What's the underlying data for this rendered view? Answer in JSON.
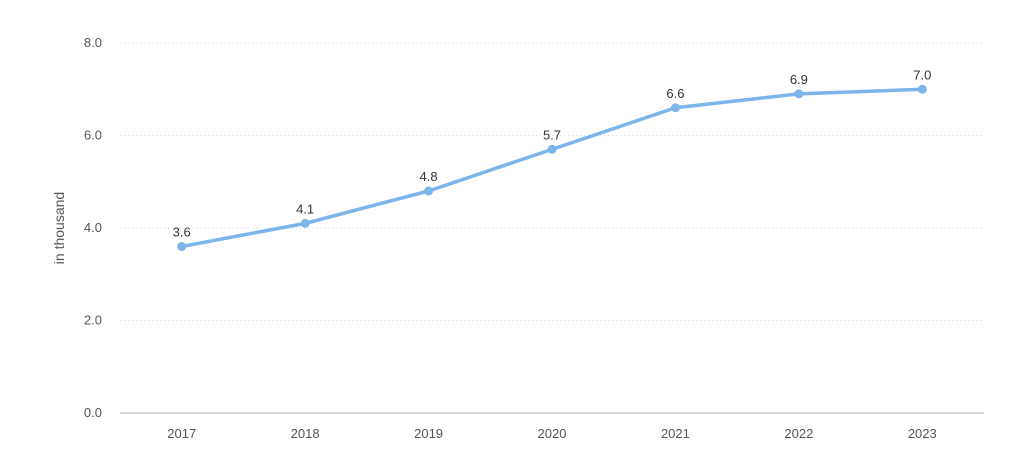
{
  "chart_data": {
    "type": "line",
    "categories": [
      "2017",
      "2018",
      "2019",
      "2020",
      "2021",
      "2022",
      "2023"
    ],
    "series": [
      {
        "values": [
          3.6,
          4.1,
          4.8,
          5.7,
          6.6,
          6.9,
          7.0
        ],
        "data_labels": [
          "3.6",
          "4.1",
          "4.8",
          "5.7",
          "6.6",
          "6.9",
          "7.0"
        ],
        "color": "#7cb5ec"
      }
    ],
    "ylabel": "in thousand",
    "xlabel": "",
    "ylim": [
      0,
      8
    ],
    "y_ticks": [
      0,
      2,
      4,
      6,
      8
    ],
    "y_tick_labels": [
      "0.0",
      "2.0",
      "4.0",
      "6.0",
      "8.0"
    ],
    "grid": true,
    "grid_color": "#d9d9d9",
    "text_color": "#555555"
  }
}
